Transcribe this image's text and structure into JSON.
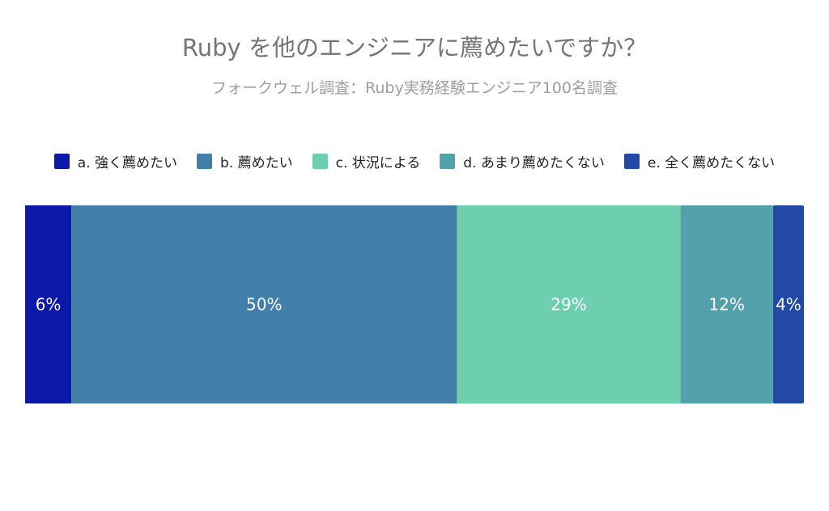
{
  "title": "Ruby を他のエンジニアに薦めたいですか？",
  "subtitle": "フォークウェル調査：Ruby実務経験エンジニア100名調査",
  "chart_data": {
    "type": "bar",
    "orientation": "horizontal",
    "stacked": true,
    "normalized_percent": true,
    "categories": [
      "Ruby を他のエンジニアに薦めたいですか？"
    ],
    "series": [
      {
        "name": "a. 強く薦めたい",
        "value": 6,
        "label": "6%",
        "color": "#0b18a8"
      },
      {
        "name": "b. 薦めたい",
        "value": 50,
        "label": "50%",
        "color": "#427fa9"
      },
      {
        "name": "c. 状況による",
        "value": 29,
        "label": "29%",
        "color": "#6dcfb0"
      },
      {
        "name": "d. あまり薦めたくない",
        "value": 12,
        "label": "12%",
        "color": "#53a1ab"
      },
      {
        "name": "e. 全く薦めたくない",
        "value": 4,
        "label": "4%",
        "color": "#2249a6"
      }
    ],
    "xlim": [
      0,
      101
    ],
    "grid": false,
    "legend_position": "top"
  }
}
